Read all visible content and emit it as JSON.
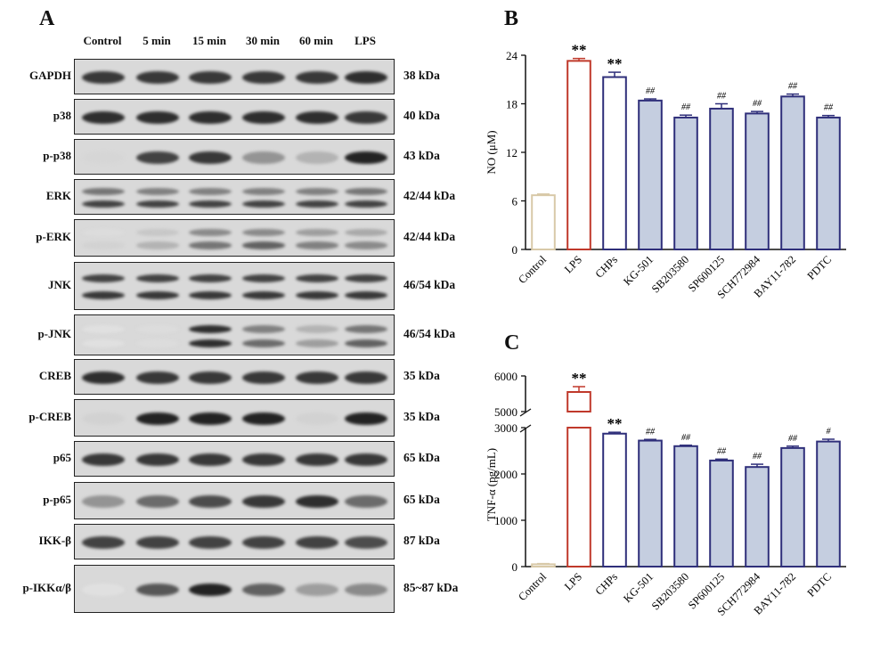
{
  "panel_a": {
    "letter": "A",
    "lanes": [
      "Control",
      "5 min",
      "15 min",
      "30 min",
      "60 min",
      "LPS"
    ],
    "rows": [
      {
        "label": "GAPDH",
        "kda": "38 kDa",
        "bands": [
          [
            0.85
          ],
          [
            0.85
          ],
          [
            0.85
          ],
          [
            0.85
          ],
          [
            0.85
          ],
          [
            0.9
          ]
        ]
      },
      {
        "label": "p38",
        "kda": "40 kDa",
        "bands": [
          [
            0.9
          ],
          [
            0.9
          ],
          [
            0.9
          ],
          [
            0.9
          ],
          [
            0.9
          ],
          [
            0.85
          ]
        ]
      },
      {
        "label": "p-p38",
        "kda": "43 kDa",
        "bands": [
          [
            0.08
          ],
          [
            0.8
          ],
          [
            0.85
          ],
          [
            0.4
          ],
          [
            0.25
          ],
          [
            0.95
          ]
        ]
      },
      {
        "label": "ERK",
        "kda": "42/44 kDa",
        "bands": [
          [
            0.55,
            0.8
          ],
          [
            0.5,
            0.8
          ],
          [
            0.5,
            0.8
          ],
          [
            0.5,
            0.8
          ],
          [
            0.5,
            0.8
          ],
          [
            0.55,
            0.8
          ]
        ]
      },
      {
        "label": "p-ERK",
        "kda": "42/44 kDa",
        "bands": [
          [
            0.05,
            0.1
          ],
          [
            0.15,
            0.25
          ],
          [
            0.45,
            0.55
          ],
          [
            0.45,
            0.65
          ],
          [
            0.35,
            0.5
          ],
          [
            0.3,
            0.45
          ]
        ]
      },
      {
        "label": "JNK",
        "kda": "46/54 kDa",
        "bands": [
          [
            0.8,
            0.85
          ],
          [
            0.8,
            0.85
          ],
          [
            0.8,
            0.85
          ],
          [
            0.8,
            0.85
          ],
          [
            0.8,
            0.85
          ],
          [
            0.8,
            0.85
          ]
        ]
      },
      {
        "label": "p-JNK",
        "kda": "46/54 kDa",
        "bands": [
          [
            0.03,
            0.03
          ],
          [
            0.05,
            0.05
          ],
          [
            0.9,
            0.9
          ],
          [
            0.5,
            0.6
          ],
          [
            0.25,
            0.35
          ],
          [
            0.55,
            0.65
          ]
        ]
      },
      {
        "label": "CREB",
        "kda": "35 kDa",
        "bands": [
          [
            0.9
          ],
          [
            0.85
          ],
          [
            0.85
          ],
          [
            0.85
          ],
          [
            0.85
          ],
          [
            0.85
          ]
        ]
      },
      {
        "label": "p-CREB",
        "kda": "35 kDa",
        "bands": [
          [
            0.1
          ],
          [
            0.95
          ],
          [
            0.95
          ],
          [
            0.95
          ],
          [
            0.1
          ],
          [
            0.95
          ]
        ]
      },
      {
        "label": "p65",
        "kda": "65 kDa",
        "bands": [
          [
            0.85
          ],
          [
            0.85
          ],
          [
            0.85
          ],
          [
            0.85
          ],
          [
            0.85
          ],
          [
            0.85
          ]
        ]
      },
      {
        "label": "p-p65",
        "kda": "65 kDa",
        "bands": [
          [
            0.4
          ],
          [
            0.6
          ],
          [
            0.75
          ],
          [
            0.85
          ],
          [
            0.9
          ],
          [
            0.6
          ]
        ]
      },
      {
        "label": "IKK-β",
        "kda": "87 kDa",
        "bands": [
          [
            0.8
          ],
          [
            0.8
          ],
          [
            0.8
          ],
          [
            0.8
          ],
          [
            0.8
          ],
          [
            0.75
          ]
        ]
      },
      {
        "label": "p-IKKα/β",
        "kda": "85~87 kDa",
        "bands": [
          [
            0.03
          ],
          [
            0.7
          ],
          [
            0.95
          ],
          [
            0.65
          ],
          [
            0.35
          ],
          [
            0.45
          ]
        ]
      }
    ]
  },
  "chart_data": [
    {
      "type": "bar",
      "panel": "B",
      "ylabel": "NO (μM)",
      "ylim": [
        0,
        24
      ],
      "yticks": [
        0,
        6,
        12,
        18,
        24
      ],
      "categories": [
        "Control",
        "LPS",
        "CHPs",
        "KG-501",
        "SB203580",
        "SP600125",
        "SCH772984",
        "BAY11-782",
        "PDTC"
      ],
      "values": [
        6.7,
        23.3,
        21.3,
        18.4,
        16.3,
        17.4,
        16.8,
        18.9,
        16.3
      ],
      "errors": [
        0.15,
        0.3,
        0.6,
        0.2,
        0.3,
        0.6,
        0.25,
        0.3,
        0.25
      ],
      "annotations": [
        "",
        "**",
        "**",
        "##",
        "##",
        "##",
        "##",
        "##",
        "##"
      ],
      "colors": {
        "Control": "#d8c9a8",
        "LPS": "#c0392b",
        "CHPs": "#2f2f7a",
        "others": "#2f2f7a",
        "fill": "#c5cee0"
      }
    },
    {
      "type": "bar",
      "panel": "C",
      "ylabel": "TNF-α (pg/mL)",
      "yticks_lower": [
        0,
        1000,
        2000,
        3000
      ],
      "yticks_upper": [
        5000,
        6000
      ],
      "ylim_lower": [
        0,
        3000
      ],
      "ylim_upper": [
        5000,
        6000
      ],
      "categories": [
        "Control",
        "LPS",
        "CHPs",
        "KG-501",
        "SB203580",
        "SP600125",
        "SCH772984",
        "BAY11-782",
        "PDTC"
      ],
      "values": [
        50,
        5550,
        2870,
        2720,
        2600,
        2290,
        2150,
        2560,
        2700
      ],
      "errors": [
        15,
        150,
        30,
        25,
        20,
        30,
        60,
        40,
        50
      ],
      "annotations": [
        "",
        "**",
        "**",
        "##",
        "##",
        "##",
        "##",
        "##",
        "#"
      ],
      "colors": {
        "Control": "#d8c9a8",
        "LPS": "#c0392b",
        "CHPs": "#2f2f7a",
        "others": "#2f2f7a",
        "fill": "#c5cee0"
      }
    }
  ]
}
